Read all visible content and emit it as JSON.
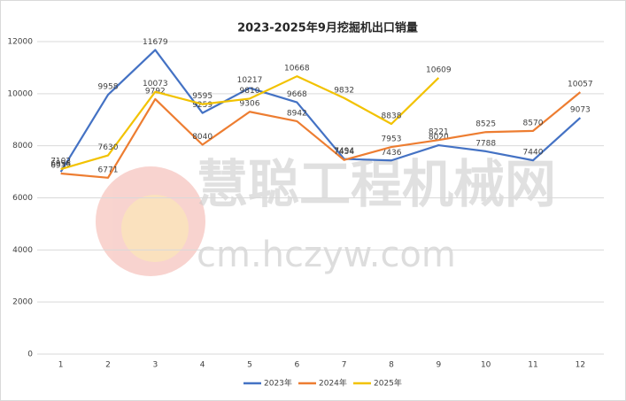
{
  "chart_data": {
    "type": "line",
    "title": "2023-2025年9月挖掘机出口销量",
    "watermark": [
      "慧聪工程机械网",
      "cm.hczyw.com"
    ],
    "categories": [
      "1",
      "2",
      "3",
      "4",
      "5",
      "6",
      "7",
      "8",
      "9",
      "10",
      "11",
      "12"
    ],
    "series": [
      {
        "name": "2023年",
        "color": "#4472c4",
        "values": [
          6998,
          9958,
          11679,
          9259,
          10217,
          9668,
          7494,
          7436,
          8020,
          7788,
          7440,
          9073
        ]
      },
      {
        "name": "2024年",
        "color": "#ed7d31",
        "values": [
          6935,
          6771,
          9792,
          8040,
          9306,
          8942,
          7454,
          7953,
          8221,
          8525,
          8570,
          10057
        ]
      },
      {
        "name": "2025年",
        "color": "#f2c200",
        "values": [
          7102,
          7630,
          10073,
          9595,
          9810,
          10668,
          9832,
          8838,
          10609,
          null,
          null,
          null
        ]
      }
    ],
    "ylim": [
      0,
      12000
    ],
    "yticks": [
      0,
      2000,
      4000,
      6000,
      8000,
      10000,
      12000
    ],
    "grid": true,
    "legend": "bottom"
  }
}
